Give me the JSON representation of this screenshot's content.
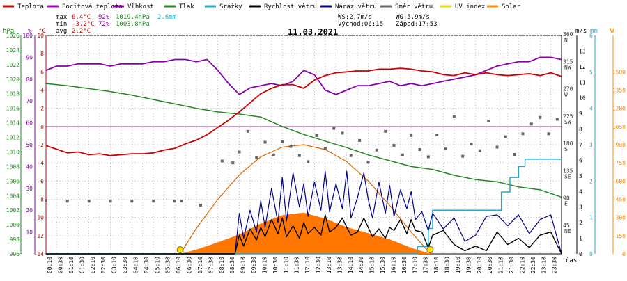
{
  "title": "11.03.2021",
  "legend": [
    {
      "label": "Teplota",
      "color": "#cc0000"
    },
    {
      "label": "Pocitová teplota",
      "color": "#aa00cc"
    },
    {
      "label": "Vlhkost",
      "color": "#8800aa"
    },
    {
      "label": "Tlak",
      "color": "#228822"
    },
    {
      "label": "Srážky",
      "color": "#22aacc"
    },
    {
      "label": "Rychlost větru",
      "color": "#000000"
    },
    {
      "label": "Náraz větru",
      "color": "#000088"
    },
    {
      "label": "Směr větru",
      "color": "#666666"
    },
    {
      "label": "UV index",
      "color": "#dddd00"
    },
    {
      "label": "Solar",
      "color": "#ff8800"
    }
  ],
  "stats": {
    "max_label": "max",
    "max_temp": "6.4°C",
    "max_hum": "92%",
    "max_press": "1019.4hPa",
    "max_rain": "2.6mm",
    "min_label": "min",
    "min_temp": "-3.2°C",
    "min_hum": "72%",
    "min_press": "1003.8hPa",
    "avg_label": "avg",
    "avg_temp": "2.2°C"
  },
  "wind_info": {
    "ws": "WS:2.7m/s",
    "wg": "WG:5.9m/s",
    "sunrise": "Východ:06:15",
    "sunset": "Západ:17:53"
  },
  "axes": {
    "hpa_label": "hPa",
    "pct_label": "%",
    "temp_label": "°C",
    "ms_label": "m/s",
    "mm_label": "mm",
    "w_label": "W",
    "time_label": "čas",
    "hpa_ticks": [
      "1026",
      "1024",
      "1022",
      "1020",
      "1018",
      "1016",
      "1014",
      "1012",
      "1010",
      "1008",
      "1006",
      "1004",
      "1002",
      "1000",
      "998",
      "996"
    ],
    "pct_ticks": [
      "100",
      "90",
      "80",
      "70",
      "60",
      "50",
      "40",
      "30",
      "20",
      "10"
    ],
    "temp_ticks": [
      "10",
      "8",
      "6",
      "4",
      "2",
      "0",
      "-2",
      "-4",
      "-6",
      "-8",
      "-10",
      "-12",
      "-14"
    ],
    "dir_values": [
      "360",
      "315",
      "270",
      "225",
      "180",
      "135",
      "90",
      "45"
    ],
    "dir_names": [
      "N",
      "NW",
      "W",
      "SW",
      "S",
      "SE",
      "E",
      "NE"
    ],
    "ms_ticks": [
      "13",
      "12",
      "11",
      "10",
      "9",
      "8",
      "7",
      "6",
      "5",
      "4",
      "3",
      "2",
      "1",
      "0"
    ],
    "mm_ticks": [
      "6",
      "5",
      "4",
      "3",
      "2",
      "1",
      "0"
    ],
    "w_ticks": [
      "1500",
      "1350",
      "1200",
      "1050",
      "900",
      "750",
      "600",
      "450",
      "300",
      "150",
      "0"
    ],
    "x_ticks": [
      "00:10",
      "00:30",
      "01:10",
      "01:30",
      "02:10",
      "02:30",
      "03:10",
      "03:30",
      "04:10",
      "04:30",
      "05:10",
      "05:30",
      "06:10",
      "06:30",
      "07:10",
      "07:30",
      "08:10",
      "08:30",
      "09:10",
      "09:30",
      "10:10",
      "10:30",
      "11:10",
      "11:30",
      "12:10",
      "12:30",
      "13:10",
      "13:30",
      "14:10",
      "14:30",
      "15:10",
      "15:30",
      "16:10",
      "16:30",
      "17:10",
      "17:30",
      "18:10",
      "18:30",
      "19:10",
      "19:30",
      "20:10",
      "20:30",
      "21:10",
      "21:30",
      "22:10",
      "22:30",
      "23:10",
      "23:30"
    ]
  },
  "chart_data": {
    "type": "line",
    "title": "11.03.2021",
    "x_unit": "hour of day",
    "xlim": [
      0,
      24
    ],
    "series": [
      {
        "name": "Teplota",
        "unit": "°C",
        "color": "#cc0000",
        "x": [
          0,
          0.5,
          1,
          1.5,
          2,
          2.5,
          3,
          3.5,
          4,
          4.5,
          5,
          5.5,
          6,
          6.5,
          7,
          7.5,
          8,
          8.5,
          9,
          9.5,
          10,
          10.5,
          11,
          11.5,
          12,
          12.5,
          13,
          13.5,
          14,
          14.5,
          15,
          15.5,
          16,
          16.5,
          17,
          17.5,
          18,
          18.5,
          19,
          19.5,
          20,
          20.5,
          21,
          21.5,
          22,
          22.5,
          23,
          23.5,
          24
        ],
        "y": [
          -2.1,
          -2.5,
          -2.9,
          -2.8,
          -3.1,
          -3.0,
          -3.2,
          -3.1,
          -3.0,
          -3.0,
          -2.9,
          -2.6,
          -2.4,
          -1.9,
          -1.5,
          -0.9,
          -0.1,
          0.7,
          1.6,
          2.6,
          3.6,
          4.2,
          4.6,
          4.6,
          4.2,
          5.1,
          5.6,
          5.9,
          6.0,
          6.1,
          6.1,
          6.3,
          6.3,
          6.4,
          6.3,
          6.1,
          6.0,
          5.7,
          5.6,
          5.9,
          5.7,
          5.9,
          5.7,
          5.6,
          5.7,
          5.8,
          5.6,
          5.9,
          5.5
        ]
      },
      {
        "name": "Vlhkost",
        "unit": "%",
        "color": "#8800aa",
        "x": [
          0,
          0.5,
          1,
          1.5,
          2,
          2.5,
          3,
          3.5,
          4,
          4.5,
          5,
          5.5,
          6,
          6.5,
          7,
          7.5,
          8,
          8.5,
          9,
          9.5,
          10,
          10.5,
          11,
          11.5,
          12,
          12.5,
          13,
          13.5,
          14,
          14.5,
          15,
          15.5,
          16,
          16.5,
          17,
          17.5,
          18,
          18.5,
          19,
          19.5,
          20,
          20.5,
          21,
          21.5,
          22,
          22.5,
          23,
          23.5,
          24
        ],
        "y": [
          84,
          86,
          86,
          87,
          87,
          87,
          86,
          87,
          87,
          87,
          88,
          88,
          89,
          89,
          88,
          89,
          84,
          78,
          73,
          76,
          77,
          78,
          77,
          79,
          84,
          82,
          75,
          73,
          75,
          77,
          77,
          78,
          79,
          77,
          78,
          77,
          78,
          79,
          80,
          81,
          82,
          84,
          86,
          87,
          88,
          88,
          90,
          90,
          89
        ]
      },
      {
        "name": "Tlak",
        "unit": "hPa",
        "color": "#228822",
        "x": [
          0,
          1,
          2,
          3,
          4,
          5,
          6,
          7,
          8,
          9,
          10,
          11,
          12,
          13,
          14,
          15,
          16,
          17,
          18,
          19,
          20,
          21,
          22,
          23,
          24
        ],
        "y": [
          1019.4,
          1019.1,
          1018.7,
          1018.3,
          1017.8,
          1017.2,
          1016.6,
          1016.0,
          1015.5,
          1015.2,
          1014.8,
          1013.5,
          1012.4,
          1011.5,
          1010.6,
          1009.6,
          1008.8,
          1008.0,
          1007.6,
          1006.8,
          1006.2,
          1005.9,
          1005.2,
          1004.8,
          1003.8
        ]
      },
      {
        "name": "Srážky",
        "unit": "mm",
        "color": "#22aacc",
        "x": [
          0,
          16.2,
          17.3,
          17.8,
          18.0,
          20.5,
          21.2,
          21.6,
          22.0,
          22.3,
          24
        ],
        "y": [
          0,
          0,
          0.2,
          0.7,
          1.2,
          1.2,
          1.7,
          2.1,
          2.4,
          2.6,
          2.6
        ]
      },
      {
        "name": "Rychlost větru",
        "unit": "m/s",
        "color": "#000000",
        "x": [
          0,
          8.8,
          9.0,
          9.2,
          9.5,
          9.8,
          10.0,
          10.2,
          10.5,
          10.8,
          11.0,
          11.2,
          11.5,
          11.8,
          12.0,
          12.2,
          12.5,
          12.8,
          13.0,
          13.2,
          13.5,
          13.8,
          14.0,
          14.2,
          14.5,
          14.8,
          15.0,
          15.2,
          15.5,
          15.8,
          16.0,
          16.2,
          16.5,
          16.8,
          17.0,
          17.2,
          17.5,
          17.8,
          18.0,
          18.5,
          19.0,
          19.5,
          20.0,
          20.5,
          21.0,
          21.5,
          22.0,
          22.5,
          23.0,
          23.5,
          24
        ],
        "y": [
          0,
          0,
          1.2,
          0.5,
          1.6,
          0.9,
          1.7,
          1.1,
          2.2,
          1.3,
          2.3,
          1.1,
          1.8,
          1.0,
          2.0,
          1.3,
          1.7,
          1.2,
          2.5,
          1.4,
          1.7,
          2.3,
          1.7,
          1.2,
          1.4,
          2.3,
          1.7,
          1.1,
          1.6,
          1.0,
          1.7,
          1.5,
          2.2,
          1.3,
          2.2,
          1.5,
          1.4,
          0.4,
          1.2,
          1.5,
          0.6,
          0.2,
          0.5,
          0.2,
          1.4,
          0.6,
          1.0,
          0.4,
          1.2,
          1.4,
          0
        ]
      },
      {
        "name": "Náraz větru",
        "unit": "m/s",
        "color": "#000088",
        "x": [
          0,
          8.8,
          9.0,
          9.2,
          9.5,
          9.8,
          10.0,
          10.2,
          10.5,
          10.8,
          11.0,
          11.2,
          11.5,
          11.8,
          12.0,
          12.2,
          12.5,
          12.8,
          13.0,
          13.2,
          13.5,
          13.8,
          14.0,
          14.2,
          14.5,
          14.8,
          15.0,
          15.2,
          15.5,
          15.8,
          16.0,
          16.2,
          16.5,
          16.8,
          17.0,
          17.2,
          17.5,
          17.8,
          18.0,
          18.5,
          19.0,
          19.5,
          20.0,
          20.5,
          21.0,
          21.5,
          22.0,
          22.5,
          23.0,
          23.5,
          24
        ],
        "y": [
          0,
          0,
          2.6,
          1.0,
          2.8,
          1.4,
          3.4,
          1.7,
          4.2,
          2.0,
          4.9,
          2.1,
          5.2,
          3.0,
          4.5,
          2.4,
          4.6,
          2.8,
          5.3,
          2.7,
          4.5,
          2.9,
          5.3,
          2.3,
          3.6,
          5.2,
          3.5,
          2.3,
          4.6,
          2.6,
          4.4,
          2.4,
          4.1,
          2.9,
          4.0,
          2.2,
          2.7,
          1.5,
          2.6,
          1.6,
          2.3,
          0.8,
          1.2,
          2.4,
          2.5,
          1.8,
          2.5,
          1.3,
          2.2,
          2.5,
          0
        ]
      },
      {
        "name": "Směr větru",
        "unit": "°",
        "color": "#666666",
        "x": [
          0,
          1,
          2,
          3,
          4,
          5,
          6,
          6.3,
          7.2,
          8.2,
          8.7,
          9.0,
          9.4,
          9.8,
          10.2,
          10.6,
          11.0,
          11.4,
          11.8,
          12.2,
          12.6,
          13.0,
          13.4,
          13.8,
          14.2,
          14.6,
          15.0,
          15.4,
          15.8,
          16.2,
          16.6,
          17.0,
          17.4,
          17.8,
          18.2,
          18.6,
          19.0,
          19.4,
          19.8,
          20.2,
          20.6,
          21.0,
          21.4,
          21.8,
          22.2,
          22.6,
          23.0,
          23.4,
          23.8
        ],
        "y": [
          88,
          87,
          87,
          87,
          87,
          87,
          87,
          87,
          80,
          153,
          150,
          168,
          202,
          159,
          184,
          163,
          185,
          177,
          162,
          152,
          195,
          174,
          207,
          199,
          162,
          187,
          151,
          171,
          202,
          179,
          163,
          195,
          172,
          160,
          196,
          173,
          226,
          161,
          181,
          170,
          219,
          176,
          193,
          164,
          198,
          214,
          225,
          198,
          222
        ]
      },
      {
        "name": "Solar",
        "unit": "W/m²",
        "color": "#ff8800",
        "x": [
          0,
          6.25,
          7,
          8,
          9,
          10,
          11,
          12,
          13,
          14,
          15,
          16,
          17,
          17.9,
          24
        ],
        "y": [
          0,
          0,
          35,
          95,
          160,
          250,
          320,
          340,
          290,
          220,
          170,
          120,
          50,
          0,
          0
        ]
      },
      {
        "name": "Solar max",
        "unit": "W/m²",
        "color": "#dd6600",
        "x": [
          6.25,
          7,
          8,
          9,
          10,
          11,
          12,
          13,
          14,
          15,
          16,
          17,
          17.9
        ],
        "y": [
          0,
          210,
          450,
          650,
          800,
          880,
          900,
          860,
          760,
          600,
          400,
          180,
          0
        ]
      }
    ]
  }
}
